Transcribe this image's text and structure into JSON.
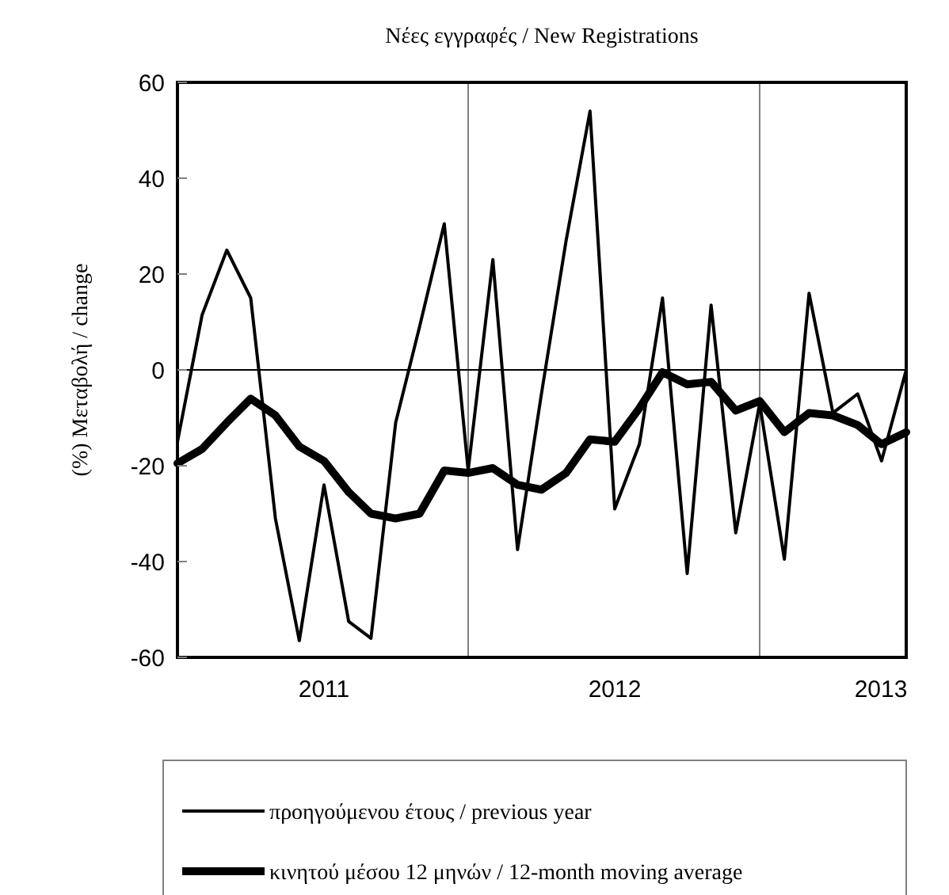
{
  "chart_data": {
    "type": "line",
    "title": "Νέες εγγραφές / New Registrations",
    "ylabel": "(%) Μεταβολή / change",
    "x": [
      "2010-07",
      "2010-08",
      "2010-09",
      "2010-10",
      "2010-11",
      "2010-12",
      "2011-01",
      "2011-02",
      "2011-03",
      "2011-04",
      "2011-05",
      "2011-06",
      "2011-07",
      "2011-08",
      "2011-09",
      "2011-10",
      "2011-11",
      "2011-12",
      "2012-01",
      "2012-02",
      "2012-03",
      "2012-04",
      "2012-05",
      "2012-06",
      "2012-07",
      "2012-08",
      "2012-09",
      "2012-10",
      "2012-11",
      "2012-12",
      "2013-01"
    ],
    "xlim": [
      "2010-07",
      "2013-01"
    ],
    "xticks": [
      "2011",
      "2012",
      "2013"
    ],
    "ylim": [
      -60,
      60
    ],
    "yticks": [
      -60,
      -40,
      -20,
      0,
      20,
      40,
      60
    ],
    "series": [
      {
        "name": "προηγούμενου έτους / previous year",
        "color": "#000000",
        "values": [
          -15,
          11.5,
          25,
          15,
          -31,
          -56.5,
          -24,
          -52.5,
          -56,
          -11,
          9,
          30.5,
          -21,
          23,
          -37.5,
          -5,
          27,
          54,
          -29,
          -15.5,
          15,
          -42.5,
          13.5,
          -34,
          -7,
          -39.5,
          16,
          -9,
          -5,
          -19,
          0
        ]
      },
      {
        "name": "κινητού μέσου 12 μηνών / 12-month moving average",
        "color": "#000000",
        "values": [
          -19.5,
          -16.5,
          -11,
          -6,
          -9.5,
          -16,
          -19,
          -25.5,
          -30,
          -31,
          -30,
          -21,
          -21.5,
          -20.5,
          -24,
          -25,
          -21.5,
          -14.5,
          -15,
          -8,
          -0.5,
          -3,
          -2.5,
          -8.5,
          -6.5,
          -13,
          -9,
          -9.5,
          -11.5,
          -15.5,
          -13
        ]
      }
    ],
    "ref_lines": [
      {
        "axis": "x",
        "value": "2011-07",
        "color": "#808080"
      },
      {
        "axis": "x",
        "value": "2012-07",
        "color": "#808080"
      },
      {
        "axis": "y",
        "value": 0,
        "color": "#000000"
      }
    ],
    "grid": false,
    "legend": "bottom",
    "marker": "none",
    "line_style": "solid"
  }
}
